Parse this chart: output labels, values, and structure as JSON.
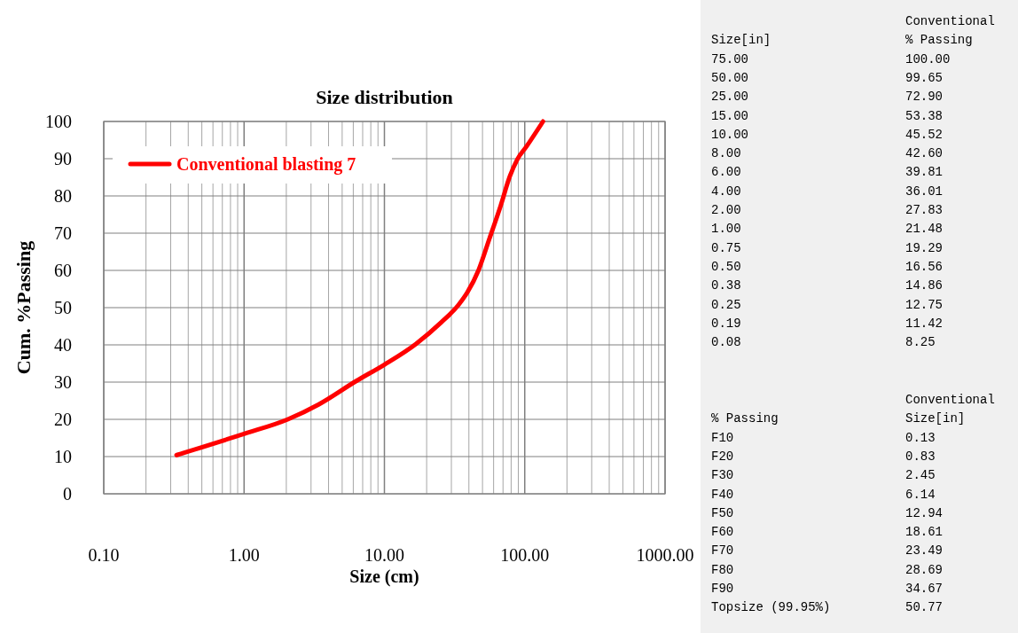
{
  "chart_data": [
    {
      "type": "line",
      "title": "Size distribution",
      "xlabel": "Size (cm)",
      "ylabel": "Cum. %Passing",
      "log": "x",
      "grid": true,
      "legend": "top left",
      "marker": "none",
      "line_style": "solid",
      "xlim": [
        0.1,
        1000
      ],
      "xticks": [
        {
          "value": 0.1,
          "label": "0.10"
        },
        {
          "value": 0.2,
          "label": null
        },
        {
          "value": 0.3,
          "label": null
        },
        {
          "value": 0.4,
          "label": null
        },
        {
          "value": 0.5,
          "label": null
        },
        {
          "value": 0.6,
          "label": null
        },
        {
          "value": 0.7,
          "label": null
        },
        {
          "value": 0.8,
          "label": null
        },
        {
          "value": 0.9,
          "label": null
        },
        {
          "value": 1,
          "label": "1.00"
        },
        {
          "value": 2,
          "label": null
        },
        {
          "value": 3,
          "label": null
        },
        {
          "value": 4,
          "label": null
        },
        {
          "value": 5,
          "label": null
        },
        {
          "value": 6,
          "label": null
        },
        {
          "value": 7,
          "label": null
        },
        {
          "value": 8,
          "label": null
        },
        {
          "value": 9,
          "label": null
        },
        {
          "value": 10,
          "label": "10.00"
        },
        {
          "value": 20,
          "label": null
        },
        {
          "value": 30,
          "label": null
        },
        {
          "value": 40,
          "label": null
        },
        {
          "value": 50,
          "label": null
        },
        {
          "value": 60,
          "label": null
        },
        {
          "value": 70,
          "label": null
        },
        {
          "value": 80,
          "label": null
        },
        {
          "value": 90,
          "label": null
        },
        {
          "value": 100,
          "label": "100.00"
        },
        {
          "value": 200,
          "label": null
        },
        {
          "value": 300,
          "label": null
        },
        {
          "value": 400,
          "label": null
        },
        {
          "value": 500,
          "label": null
        },
        {
          "value": 600,
          "label": null
        },
        {
          "value": 700,
          "label": null
        },
        {
          "value": 800,
          "label": null
        },
        {
          "value": 900,
          "label": null
        },
        {
          "value": 1000,
          "label": "1000.00"
        }
      ],
      "ylim": [
        0,
        100
      ],
      "yticks": [
        0,
        10,
        20,
        30,
        40,
        50,
        60,
        70,
        80,
        90,
        100
      ],
      "series": [
        {
          "name": "Conventional blasting 7",
          "color": "#ff0000",
          "x": [
            0.33,
            1,
            2.05,
            3.4,
            6.3,
            10,
            16.7,
            25.5,
            33.5,
            39,
            46.8,
            56,
            67.4,
            78.4,
            88.5,
            103,
            135
          ],
          "values": [
            10.4,
            16.1,
            20,
            24,
            30.3,
            34.7,
            40.2,
            46.1,
            50.6,
            54.1,
            60,
            68.5,
            77.4,
            85.3,
            89.8,
            93.3,
            100
          ]
        }
      ]
    },
    {
      "type": "other",
      "subtitle": "Conventional",
      "xlabel": "Size[in]",
      "ylabel": "% Passing",
      "categories": [
        "75.00",
        "50.00",
        "25.00",
        "15.00",
        "10.00",
        "8.00",
        "6.00",
        "4.00",
        "2.00",
        "1.00",
        "0.75",
        "0.50",
        "0.38",
        "0.25",
        "0.19",
        "0.08"
      ],
      "value_labels": [
        "100.00",
        "99.65",
        "72.90",
        "53.38",
        "45.52",
        "42.60",
        "39.81",
        "36.01",
        "27.83",
        "21.48",
        "19.29",
        "16.56",
        "14.86",
        "12.75",
        "11.42",
        "8.25"
      ]
    },
    {
      "type": "other",
      "subtitle": "Conventional",
      "xlabel": "% Passing",
      "ylabel": "Size[in]",
      "categories": [
        "F10",
        "F20",
        "F30",
        "F40",
        "F50",
        "F60",
        "F70",
        "F80",
        "F90",
        "Topsize (99.95%)"
      ],
      "value_labels": [
        "0.13",
        "0.83",
        "2.45",
        "6.14",
        "12.94",
        "18.61",
        "23.49",
        "28.69",
        "34.67",
        "50.77"
      ]
    }
  ]
}
